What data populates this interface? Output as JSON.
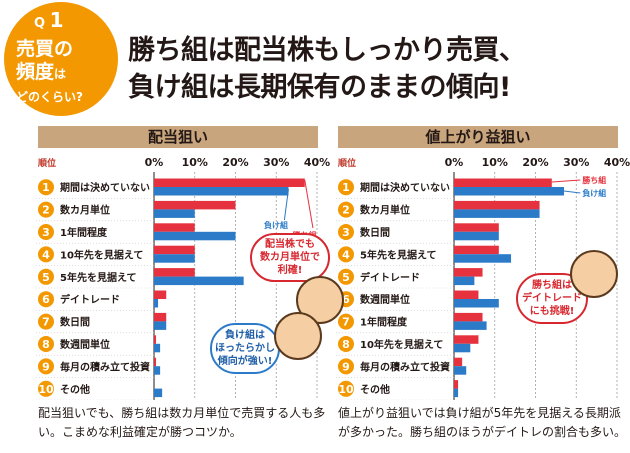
{
  "badge": {
    "q": "Q",
    "num": "1",
    "line1": "売買の",
    "line2": "頻度",
    "line2_small": "は",
    "line3": "どのくらい?"
  },
  "headline": {
    "line1": "勝ち組は配当株もしっかり売買、",
    "line2": "負け組は長期保有のままの傾向!"
  },
  "colors": {
    "winner": "#e5323e",
    "loser": "#2b7bc9",
    "accent": "#f39800",
    "header": "#c8a57c"
  },
  "chart_data": [
    {
      "type": "bar",
      "title": "配当狙い",
      "rank_label": "順位",
      "categories": [
        "期間は決めていない",
        "数カ月単位",
        "1年間程度",
        "10年先を見据えて",
        "5年先を見据えて",
        "デイトレード",
        "数日間",
        "数週間単位",
        "毎月の積み立て投資",
        "その他"
      ],
      "x_ticks": [
        "0%",
        "10%",
        "20%",
        "30%",
        "40%"
      ],
      "xlim": [
        0,
        40
      ],
      "series": [
        {
          "name": "勝ち組",
          "values": [
            37,
            20,
            10,
            10,
            10,
            3,
            3,
            0.5,
            0.5,
            0
          ]
        },
        {
          "name": "負け組",
          "values": [
            33,
            10,
            20,
            10,
            22,
            1,
            3,
            1.5,
            1.5,
            2
          ]
        }
      ],
      "legend_text": [
        "負け組",
        "勝ち組"
      ]
    },
    {
      "type": "bar",
      "title": "値上がり益狙い",
      "rank_label": "順位",
      "categories": [
        "期間は決めていない",
        "数カ月単位",
        "数日間",
        "5年先を見据えて",
        "デイトレード",
        "数週間単位",
        "1年間程度",
        "10年先を見据えて",
        "毎月の積み立て投資",
        "その他"
      ],
      "x_ticks": [
        "0%",
        "10%",
        "20%",
        "30%",
        "40%"
      ],
      "xlim": [
        0,
        40
      ],
      "series": [
        {
          "name": "勝ち組",
          "values": [
            24,
            21,
            11,
            11,
            7,
            6,
            7,
            6,
            2,
            1
          ]
        },
        {
          "name": "負け組",
          "values": [
            27,
            21,
            11,
            14,
            5,
            11,
            8,
            4,
            3,
            1
          ]
        }
      ],
      "legend_text": [
        "勝ち組",
        "負け組"
      ]
    }
  ],
  "bubbles": {
    "left_red": [
      "配当株でも",
      "数カ月単位で",
      "利確!"
    ],
    "left_blue": [
      "負け組は",
      "ほったらかし",
      "傾向が強い!"
    ],
    "right_red": [
      "勝ち組は",
      "デイトレード",
      "にも挑戦!"
    ]
  },
  "footer": {
    "left": [
      "配当狙いでも、勝ち組は数カ月単位で売買する人も多",
      "い。こまめな利益確定が勝つコツか。"
    ],
    "right": [
      "値上がり益狙いでは負け組が5年先を見据える長期派",
      "が多かった。勝ち組のほうがデイトレの割合も多い。"
    ]
  }
}
